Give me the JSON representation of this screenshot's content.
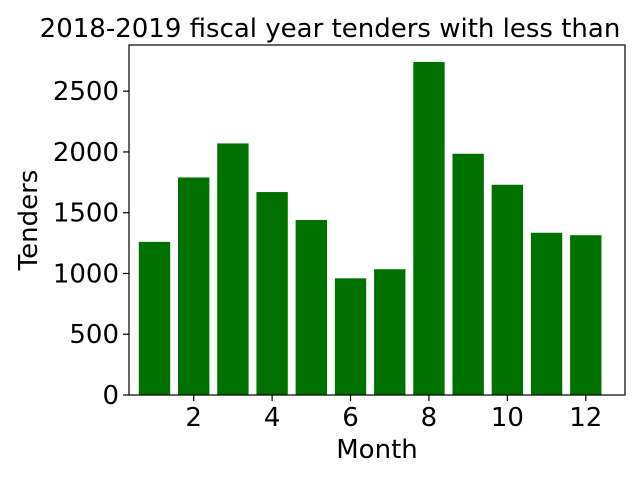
{
  "chart_data": {
    "type": "bar",
    "title": "2018-2019 fiscal year tenders with less than",
    "xlabel": "Month",
    "ylabel": "Tenders",
    "x": [
      1,
      2,
      3,
      4,
      5,
      6,
      7,
      8,
      9,
      10,
      11,
      12
    ],
    "values": [
      1260,
      1790,
      2070,
      1670,
      1440,
      960,
      1035,
      2740,
      1985,
      1730,
      1335,
      1315
    ],
    "xlim": [
      0.35,
      13.0
    ],
    "ylim": [
      0,
      2880
    ],
    "xticks": [
      2,
      4,
      6,
      8,
      10,
      12
    ],
    "yticks": [
      0,
      500,
      1000,
      1500,
      2000,
      2500
    ],
    "bar_color": "#007000",
    "grid": false
  }
}
